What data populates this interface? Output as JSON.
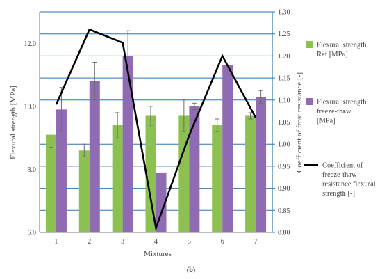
{
  "chart_data": {
    "type": "bar",
    "categories": [
      "1",
      "2",
      "3",
      "4",
      "5",
      "6",
      "7"
    ],
    "xlabel": "Mixtures",
    "ylabel": "Flexural strength [MPa]",
    "y2label": "Coefficient of frost resistance [-]",
    "ylim": [
      6.0,
      13.0
    ],
    "y2lim": [
      0.8,
      1.3
    ],
    "yticks": [
      "6.0",
      "8.0",
      "10.0",
      "12.0"
    ],
    "y2ticks": [
      "0.80",
      "0.85",
      "0.90",
      "0.95",
      "1.00",
      "1.05",
      "1.10",
      "1.15",
      "1.20",
      "1.25",
      "1.30"
    ],
    "series": [
      {
        "name": "Flexural strength Ref [MPa]",
        "kind": "bar",
        "color": "#8cc152",
        "values": [
          9.1,
          8.6,
          9.4,
          9.7,
          9.7,
          9.4,
          9.7
        ],
        "errors": [
          0.4,
          0.2,
          0.4,
          0.3,
          0.5,
          0.2,
          0.1
        ]
      },
      {
        "name": "Flexural strength freeze-thaw [MPa]",
        "kind": "bar",
        "color": "#8e6bb2",
        "values": [
          9.9,
          10.8,
          11.6,
          7.9,
          10.0,
          11.3,
          10.3
        ],
        "errors": [
          0.7,
          0.6,
          0.8,
          0.0,
          0.1,
          0.0,
          0.2
        ]
      },
      {
        "name": "Coefficient of freeze-thaw resistance flexural strength [-]",
        "kind": "line",
        "axis": "y2",
        "color": "#000000",
        "values": [
          1.09,
          1.26,
          1.23,
          0.81,
          1.02,
          1.2,
          1.06
        ]
      }
    ],
    "legend": [
      [
        "Flexural strength",
        "Ref [MPa]"
      ],
      [
        "Flexural strength",
        "freeze-thaw",
        "[MPa]"
      ],
      [
        "Coefficient of",
        "freeze-thaw",
        "resistance flexural",
        "strength [-]"
      ]
    ],
    "grid": true,
    "legend_position": "right"
  },
  "caption": "(b)"
}
